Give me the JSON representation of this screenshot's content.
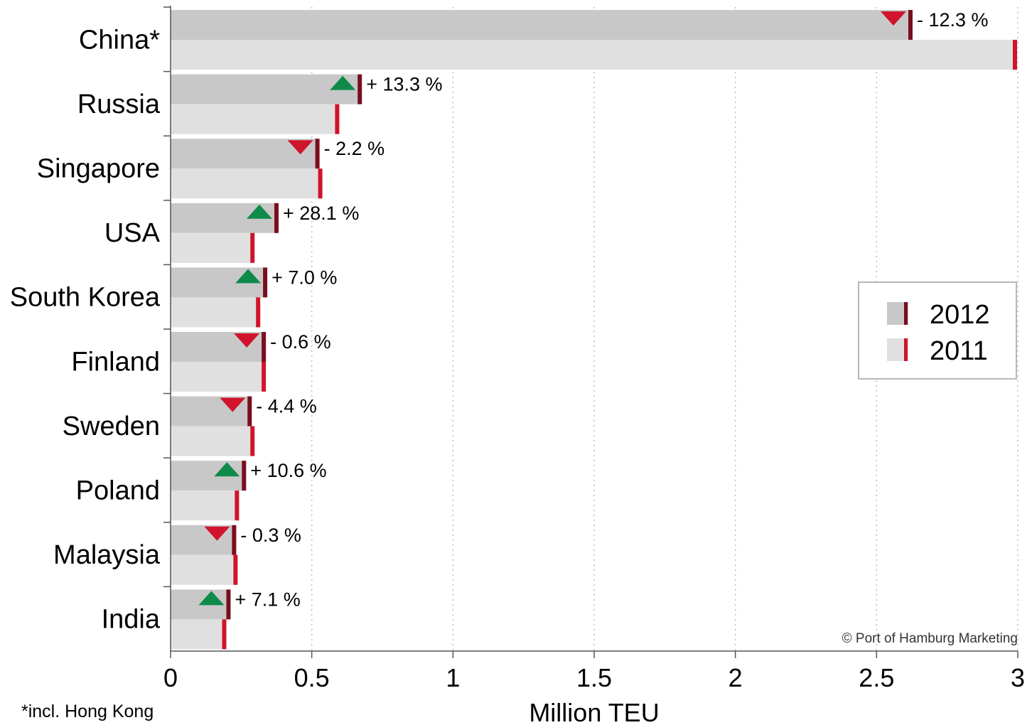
{
  "chart_data": {
    "type": "bar",
    "orientation": "horizontal",
    "title": "",
    "xlabel": "Million TEU",
    "ylabel": "",
    "xlim": [
      0,
      3
    ],
    "x_ticks": [
      "0",
      "0.5",
      "1",
      "1.5",
      "2",
      "2.5",
      "3"
    ],
    "x_tick_values": [
      0,
      0.5,
      1,
      1.5,
      2,
      2.5,
      3
    ],
    "grid": "vertical dotted",
    "legend_position": "right",
    "categories": [
      "China*",
      "Russia",
      "Singapore",
      "USA",
      "South Korea",
      "Finland",
      "Sweden",
      "Poland",
      "Malaysia",
      "India"
    ],
    "series": [
      {
        "name": "2012",
        "values": [
          2.62,
          0.67,
          0.52,
          0.375,
          0.335,
          0.33,
          0.28,
          0.26,
          0.225,
          0.205
        ]
      },
      {
        "name": "2011",
        "values": [
          2.99,
          0.59,
          0.53,
          0.29,
          0.31,
          0.33,
          0.29,
          0.235,
          0.23,
          0.19
        ]
      }
    ],
    "changes": [
      "- 12.3 %",
      "+ 13.3 %",
      "- 2.2 %",
      "+ 28.1 %",
      "+ 7.0 %",
      "- 0.6 %",
      "- 4.4 %",
      "+ 10.6 %",
      "- 0.3 %",
      "+ 7.1 %"
    ],
    "change_direction": [
      "down",
      "up",
      "down",
      "up",
      "up",
      "down",
      "down",
      "up",
      "down",
      "up"
    ],
    "footnote": "*incl. Hong Kong",
    "credit": "© Port of Hamburg Marketing",
    "colors": {
      "bar_2012": "#c8c8c8",
      "bar_2011": "#e0e0e0",
      "marker_2012": "#7a0e1e",
      "marker_2011": "#d0142c",
      "up": "#0f8a4a",
      "down": "#d0142c"
    }
  }
}
